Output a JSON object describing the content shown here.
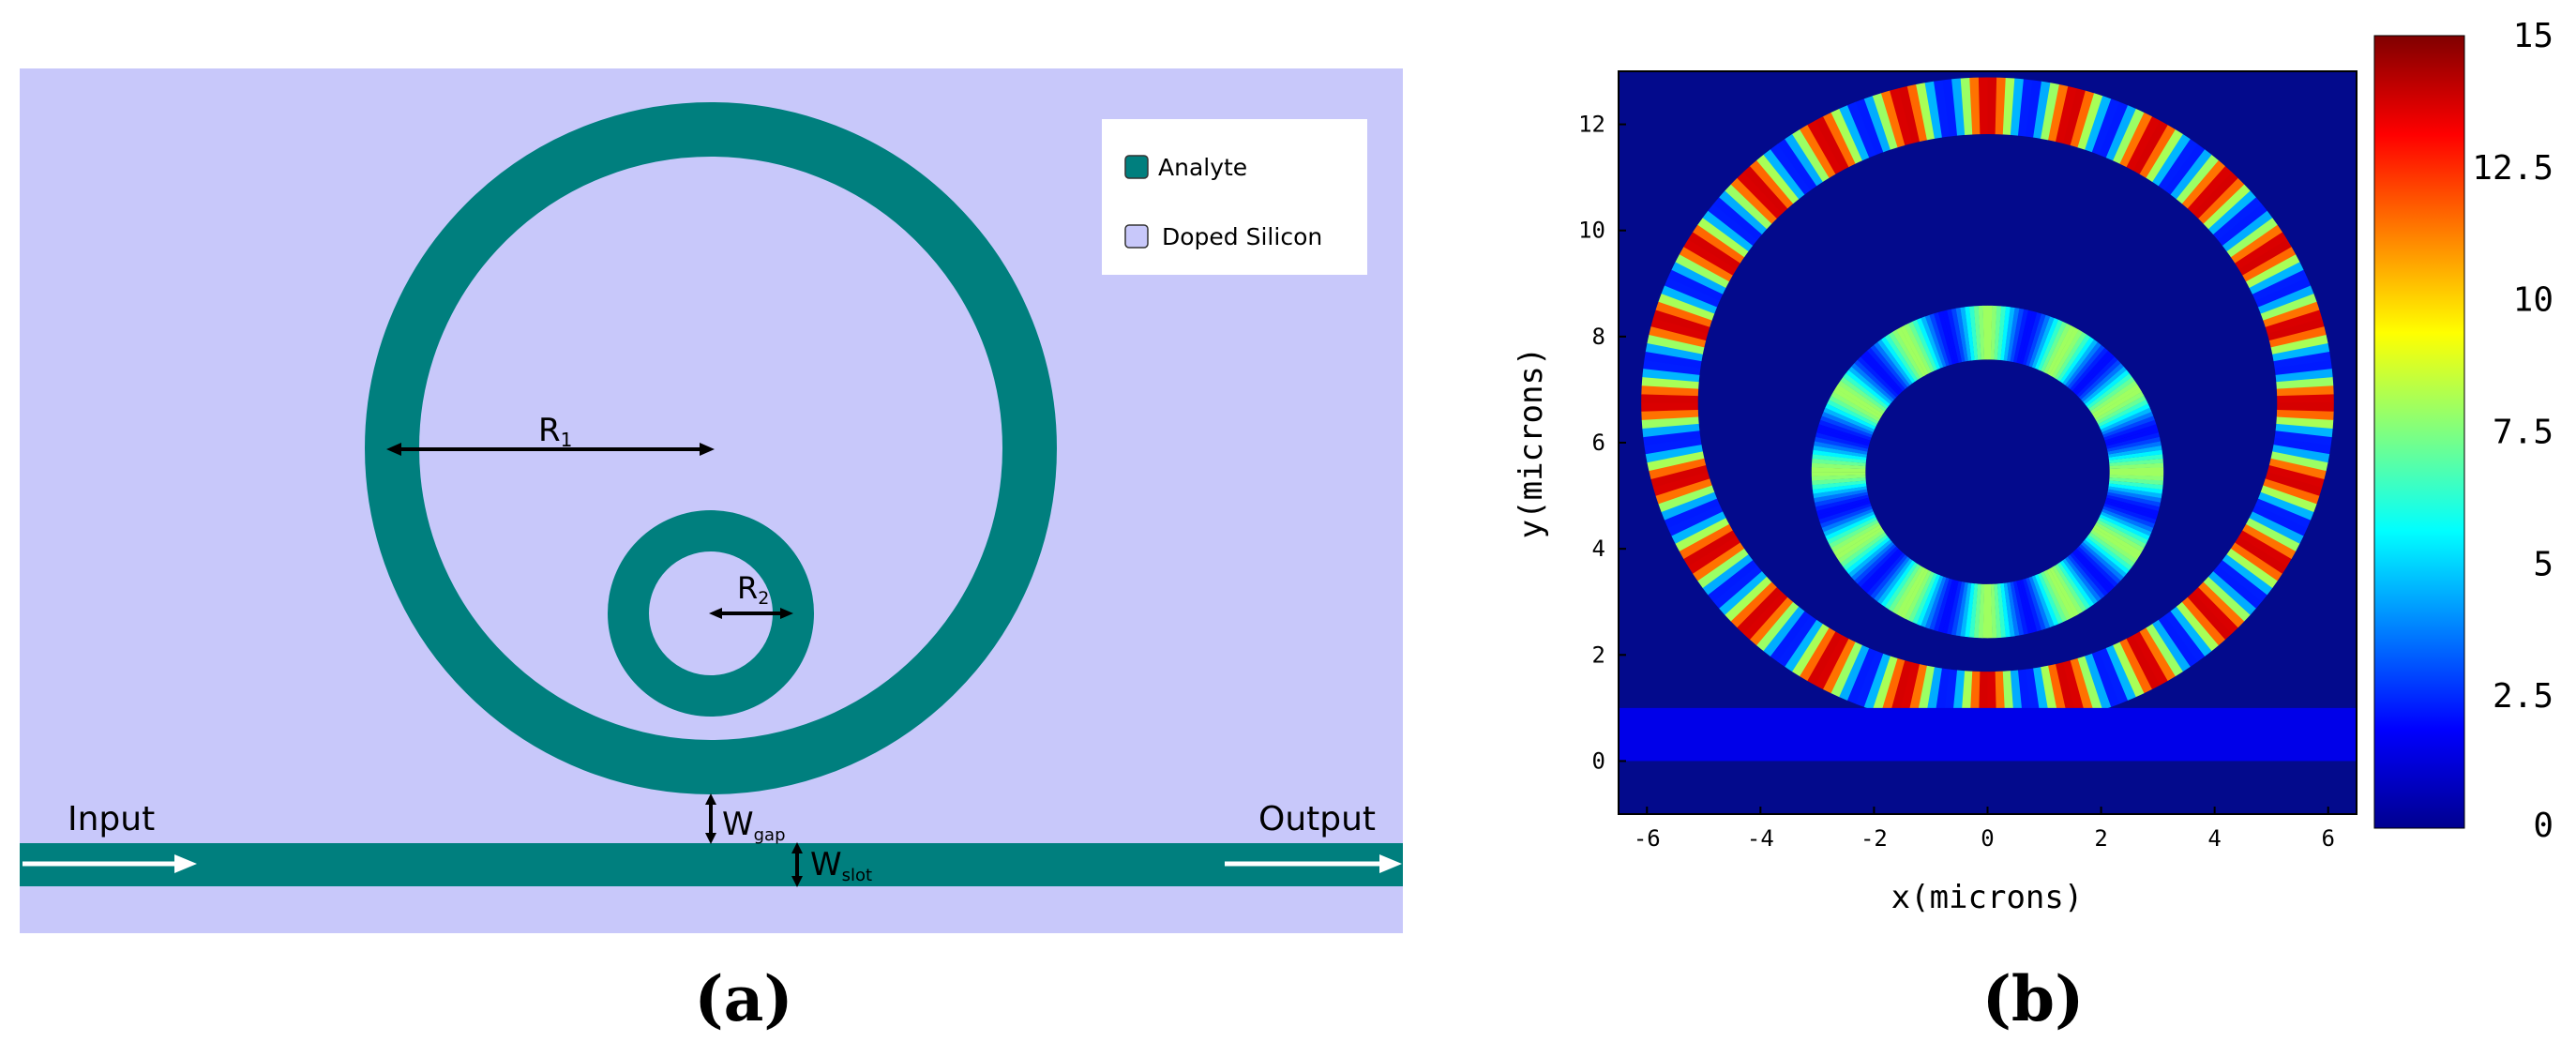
{
  "panel_a": {
    "caption": "(a)",
    "legend": {
      "items": [
        {
          "label": "Analyte",
          "color": "#007f7e"
        },
        {
          "label": "Doped Silicon",
          "color": "#c8c8fa"
        }
      ]
    },
    "labels": {
      "input": "Input",
      "output": "Output"
    },
    "dims": {
      "r1": {
        "main": "R",
        "sub": "1"
      },
      "r2": {
        "main": "R",
        "sub": "2"
      },
      "wgap": {
        "main": "W",
        "sub": "gap"
      },
      "wslot": {
        "main": "W",
        "sub": "slot"
      }
    },
    "colors": {
      "background": "#c8c8fa",
      "analyte": "#007f7e",
      "arrow": "#ffffff",
      "dim_arrow": "#000000"
    }
  },
  "panel_b": {
    "caption": "(b)",
    "chart_data": {
      "type": "heatmap",
      "title": "",
      "xlabel": "x(microns)",
      "ylabel": "y(microns)",
      "xlim": [
        -6.5,
        6.5
      ],
      "ylim": [
        -1.0,
        13.0
      ],
      "x_ticks": [
        -6,
        -4,
        -2,
        0,
        2,
        4,
        6
      ],
      "y_ticks": [
        0,
        2,
        4,
        6,
        8,
        10,
        12
      ],
      "colorbar": {
        "min": 0,
        "max": 15,
        "ticks": [
          "0",
          "2.5",
          "5",
          "7.5",
          "10",
          "12.5",
          "15"
        ]
      },
      "structures": [
        {
          "name": "outer ring",
          "center": [
            0,
            6.75
          ],
          "inner_radius": 5.1,
          "outer_radius": 6.1,
          "lobes": 24,
          "intensity_range": [
            2,
            14
          ]
        },
        {
          "name": "inner ring",
          "center": [
            0,
            5.45
          ],
          "inner_radius": 2.15,
          "outer_radius": 3.1,
          "lobes": 12,
          "intensity_range": [
            2,
            8
          ]
        },
        {
          "name": "bus waveguide",
          "y_range": [
            0,
            1.0
          ],
          "intensity": 1.5
        }
      ]
    }
  }
}
